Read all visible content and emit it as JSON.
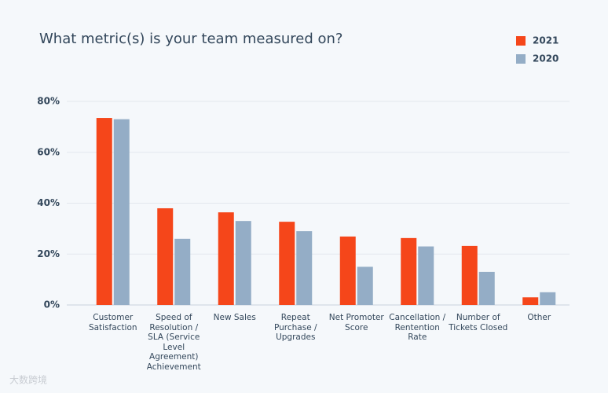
{
  "chart_data": {
    "type": "bar",
    "title": "What metric(s) is your team measured on?",
    "categories": [
      "Customer Satisfaction",
      "Speed of Resolution / SLA (Service Level Agreement) Achievement",
      "New Sales",
      "Repeat Purchase / Upgrades",
      "Net Promoter Score",
      "Cancellation / Rentention Rate",
      "Number of Tickets Closed",
      "Other"
    ],
    "series": [
      {
        "name": "2021",
        "color": "#f5461a",
        "values": [
          73.5,
          38,
          36.4,
          32.7,
          26.9,
          26.3,
          23.2,
          3
        ]
      },
      {
        "name": "2020",
        "color": "#94adc6",
        "values": [
          73,
          26,
          33,
          29,
          15,
          23,
          13,
          5
        ]
      }
    ],
    "ylim": [
      0,
      80
    ],
    "yticks": [
      {
        "value": 0,
        "label": "0%"
      },
      {
        "value": 20,
        "label": "20%"
      },
      {
        "value": 40,
        "label": "40%"
      },
      {
        "value": 60,
        "label": "60%"
      },
      {
        "value": 80,
        "label": "80%"
      }
    ],
    "grid": true,
    "legend": "top-right"
  },
  "watermark": "大数跨境"
}
